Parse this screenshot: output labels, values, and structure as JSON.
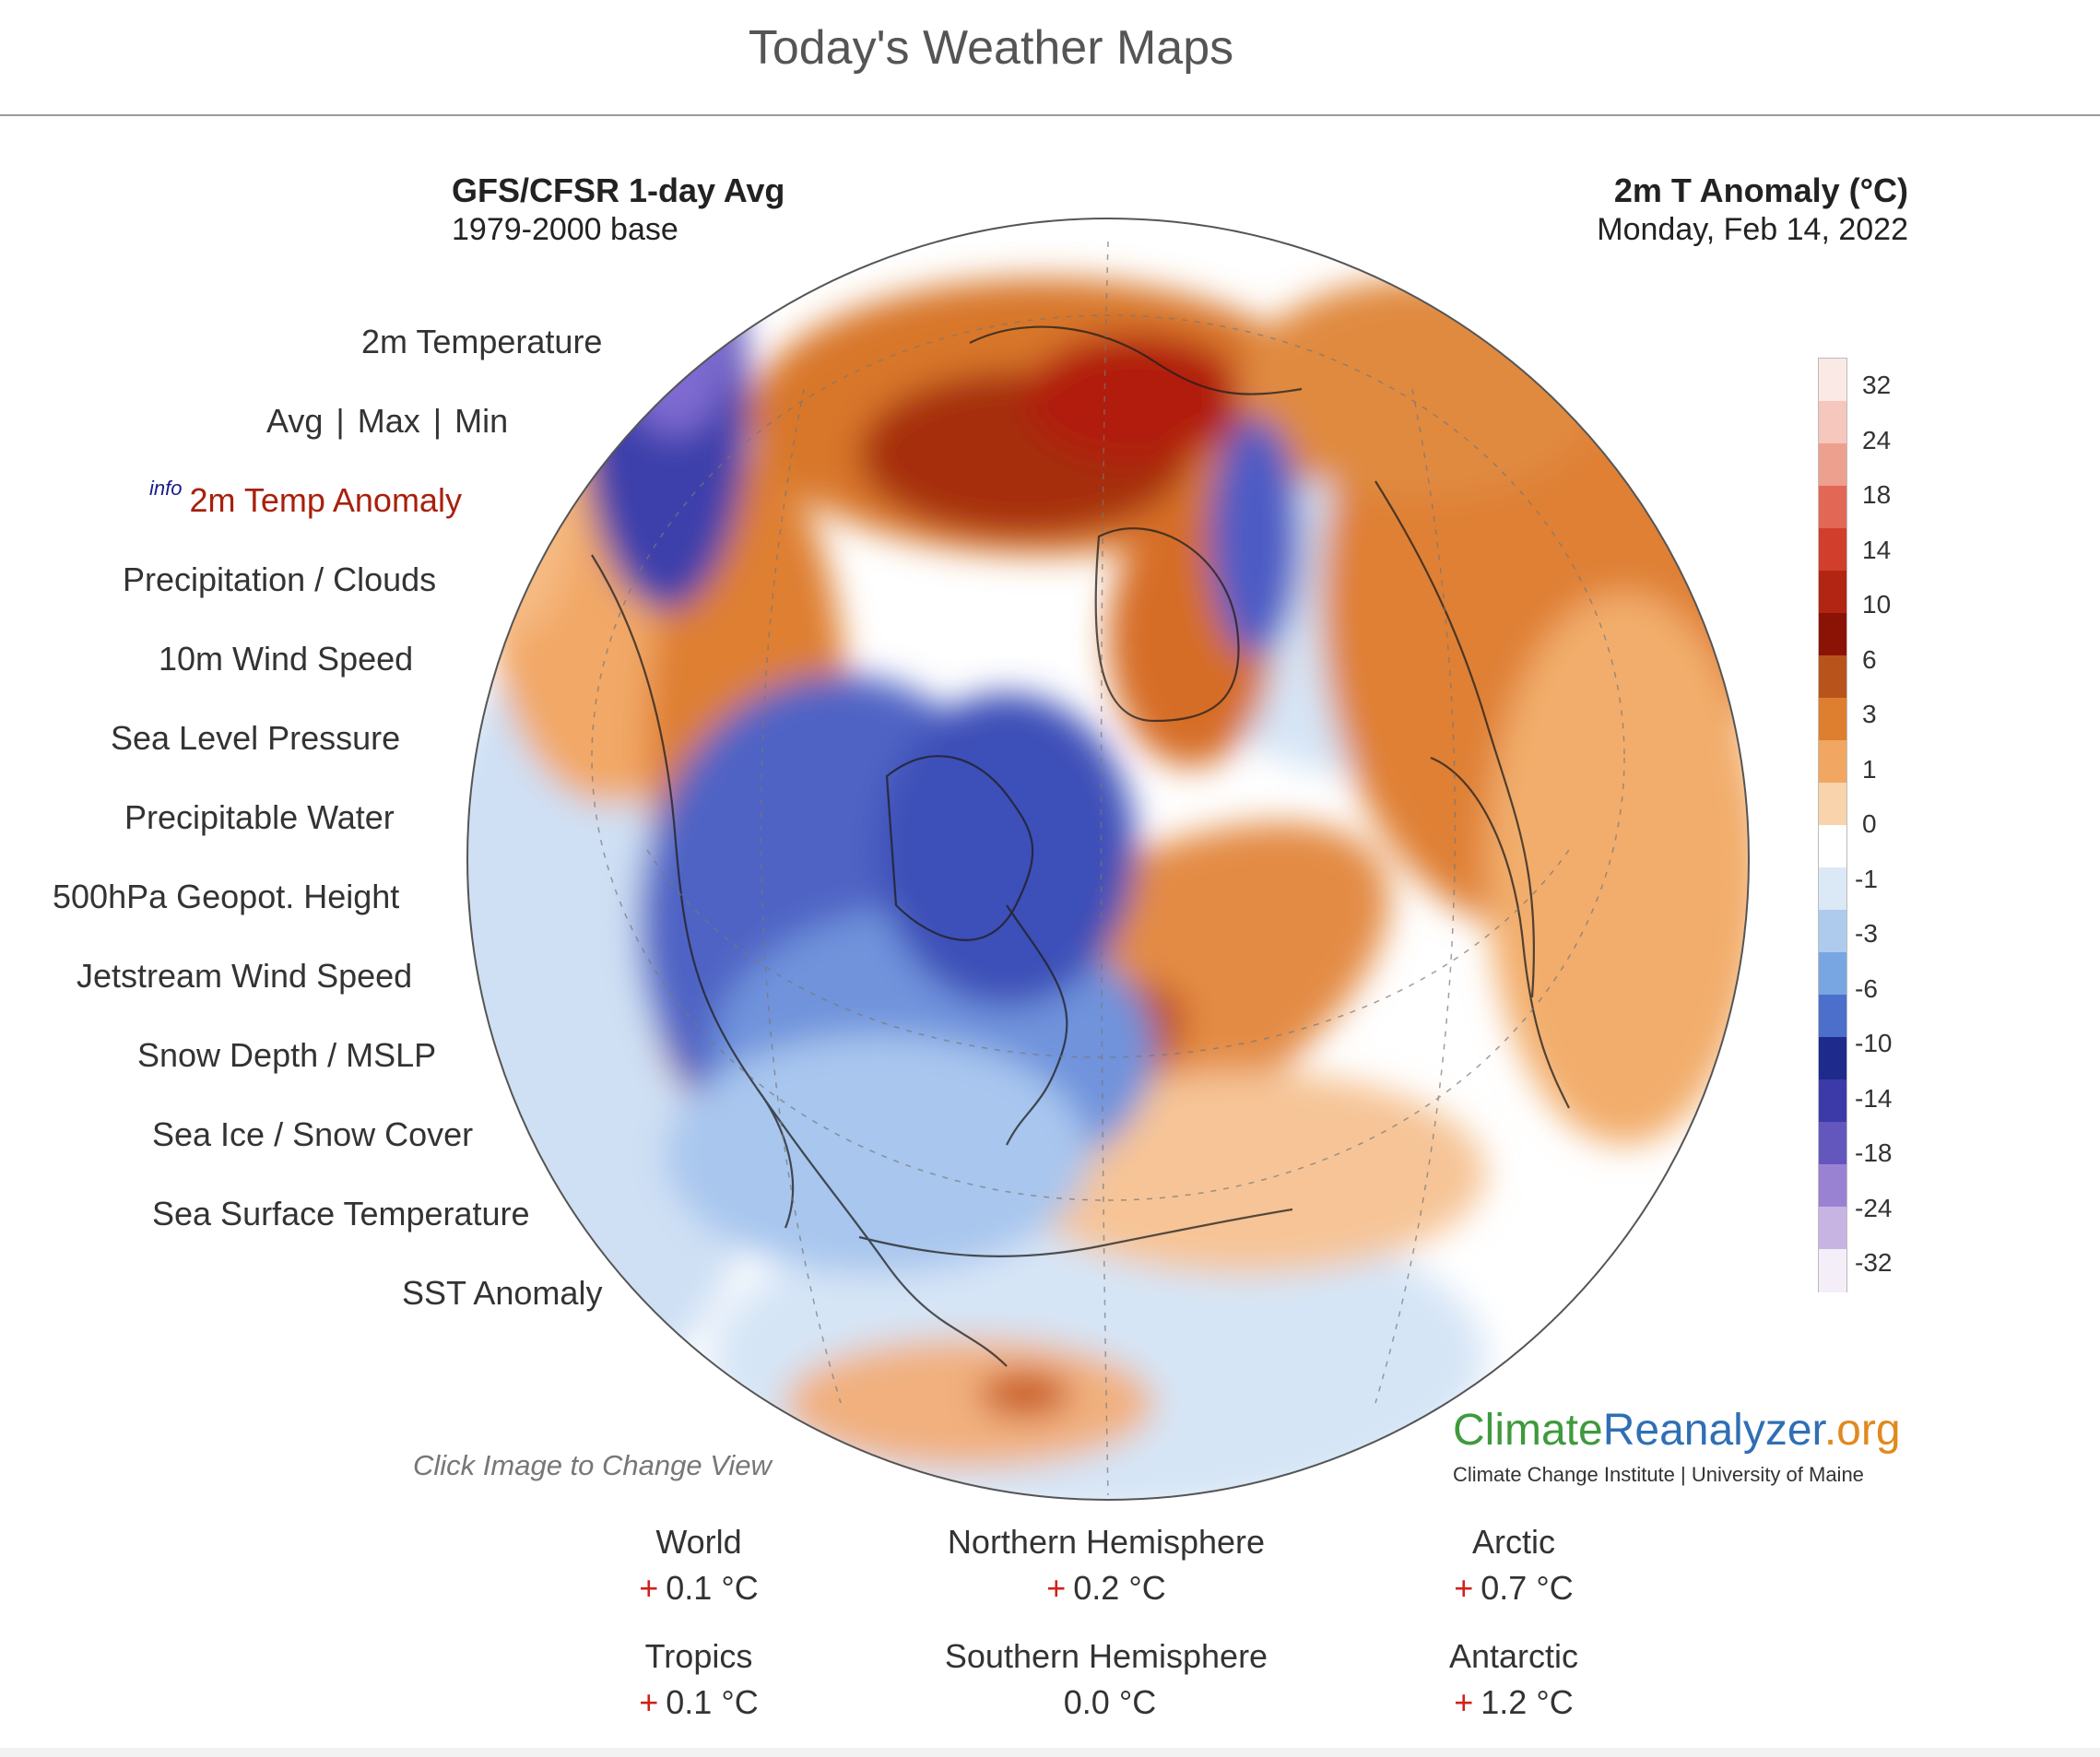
{
  "page": {
    "title": "Today's Weather Maps"
  },
  "map_header": {
    "left_title": "GFS/CFSR 1-day Avg",
    "left_subtitle": "1979-2000 base",
    "right_title": "2m T Anomaly (°C)",
    "right_subtitle": "Monday, Feb 14, 2022"
  },
  "menu": {
    "temperature": "2m Temperature",
    "avg": "Avg",
    "sep1": "|",
    "max": "Max",
    "sep2": "|",
    "min": "Min",
    "info": "info",
    "temp_anomaly": "2m Temp Anomaly",
    "precip_clouds": "Precipitation / Clouds",
    "wind10m": "10m Wind Speed",
    "slp": "Sea Level Pressure",
    "pwat": "Precipitable Water",
    "geopot500": "500hPa Geopot. Height",
    "jetstream": "Jetstream Wind Speed",
    "snow_mslp": "Snow Depth / MSLP",
    "seaice_snow": "Sea Ice / Snow Cover",
    "sst": "Sea Surface Temperature",
    "sst_anomaly": "SST Anomaly"
  },
  "map_hint": "Click Image to Change View",
  "colorbar": {
    "labels": [
      "32",
      "24",
      "18",
      "14",
      "10",
      "6",
      "3",
      "1",
      "0",
      "-1",
      "-3",
      "-6",
      "-10",
      "-14",
      "-18",
      "-24",
      "-32"
    ],
    "colors": [
      "#fbe9e6",
      "#f6c7bd",
      "#eea08f",
      "#e26855",
      "#d13e2c",
      "#b12512",
      "#8a1305",
      "#b8541b",
      "#dd7f2e",
      "#f1a662",
      "#f9d3ab",
      "#ffffff",
      "#dbe8f6",
      "#aecbee",
      "#78a6e2",
      "#4b6fca",
      "#1e2a8c",
      "#3c3aa8",
      "#6357bd",
      "#9a82d2",
      "#c7b4e2",
      "#f3eef8"
    ]
  },
  "logo": {
    "part_climate": "Climate",
    "part_reanalyzer": "Reanalyzer",
    "part_org": ".org",
    "subtitle": "Climate Change Institute | University of Maine"
  },
  "stats": {
    "world": {
      "name": "World",
      "sign": "+",
      "value": "0.1 °C"
    },
    "nh": {
      "name": "Northern Hemisphere",
      "sign": "+",
      "value": "0.2 °C"
    },
    "arctic": {
      "name": "Arctic",
      "sign": "+",
      "value": "0.7 °C"
    },
    "tropics": {
      "name": "Tropics",
      "sign": "+",
      "value": "0.1 °C"
    },
    "sh": {
      "name": "Southern Hemisphere",
      "sign": "",
      "value": "0.0 °C"
    },
    "antarctic": {
      "name": "Antarctic",
      "sign": "+",
      "value": "1.2 °C"
    }
  }
}
